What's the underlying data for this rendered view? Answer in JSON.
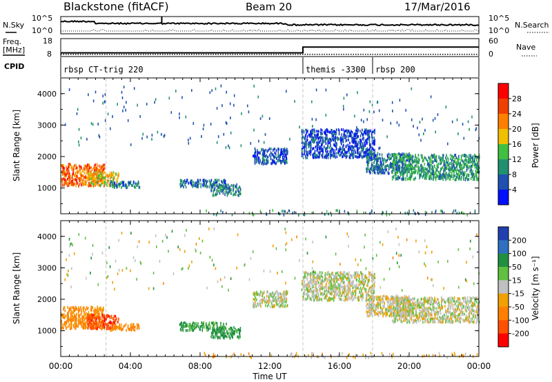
{
  "header": {
    "station": "Blackstone (fitACF)",
    "beam": "Beam 20",
    "date": "17/Mar/2016"
  },
  "noise_panel": {
    "left_label": "N.Sky",
    "left_ticks": [
      "10^5",
      "10^0"
    ],
    "right_label": "N.Search",
    "right_ticks": [
      "10^5",
      "10^0"
    ]
  },
  "freq_panel": {
    "left_label_1": "Freq.",
    "left_label_2": "[MHz]",
    "left_ticks": [
      "18",
      "8"
    ],
    "right_label": "Nave",
    "right_ticks": [
      "60",
      "0"
    ],
    "freq_series": [
      {
        "time": 0.0,
        "value": 10.7
      },
      {
        "time": 13.9,
        "value": 10.7
      },
      {
        "time": 13.9,
        "value": 14.9
      },
      {
        "time": 24.0,
        "value": 14.9
      }
    ],
    "nave_series_level": 8
  },
  "cpid": {
    "label": "CPID",
    "segments": [
      {
        "start": 0.0,
        "end": 13.9,
        "name": "rbsp CT-trig 220"
      },
      {
        "start": 13.9,
        "end": 17.9,
        "name": "themis -3300"
      },
      {
        "start": 17.9,
        "end": 24.0,
        "name": "rbsp 200"
      }
    ]
  },
  "power_panel": {
    "ylabel": "Slant Range [km]",
    "cbar_label": "Power [dB]",
    "cbar_ticks": [
      "28",
      "24",
      "20",
      "16",
      "12",
      "8",
      "4"
    ],
    "cbar_colors": [
      "#ff0000",
      "#f04000",
      "#ff8000",
      "#f0c000",
      "#40c040",
      "#209070",
      "#2050b0",
      "#0010ff"
    ]
  },
  "velocity_panel": {
    "ylabel": "Slant Range [km]",
    "cbar_label": "Velocity [m s⁻¹]",
    "cbar_ticks": [
      "200",
      "100",
      "50",
      "15",
      "-15",
      "-50",
      "-100",
      "-200"
    ],
    "cbar_colors": [
      "#2040b0",
      "#3070c0",
      "#209040",
      "#60c040",
      "#c0c0c0",
      "#f0a000",
      "#ff8000",
      "#ff5000",
      "#ff0000"
    ]
  },
  "chart_data": {
    "type": "heatmap",
    "xlabel": "Time UT",
    "x_ticks": [
      "00:00",
      "04:00",
      "08:00",
      "12:00",
      "16:00",
      "20:00",
      "00:00"
    ],
    "xlim_hours": [
      0,
      24
    ],
    "y_ticks": [
      "1000",
      "2000",
      "3000",
      "4000"
    ],
    "ylim_km": [
      180,
      4500
    ],
    "echo_regions": [
      {
        "t0": 0.0,
        "t1": 2.5,
        "r0": 1100,
        "r1": 1800,
        "power": 24,
        "velocity": -60
      },
      {
        "t0": 1.5,
        "t1": 3.3,
        "r0": 1100,
        "r1": 1550,
        "power": 18,
        "velocity": -180
      },
      {
        "t0": 2.8,
        "t1": 4.5,
        "r0": 1050,
        "r1": 1250,
        "power": 8,
        "velocity": -70
      },
      {
        "t0": 6.8,
        "t1": 9.5,
        "r0": 1050,
        "r1": 1300,
        "power": 7,
        "velocity": 60
      },
      {
        "t0": 8.6,
        "t1": 10.3,
        "r0": 800,
        "r1": 1150,
        "power": 9,
        "velocity": 70
      },
      {
        "t0": 11.0,
        "t1": 13.0,
        "r0": 1800,
        "r1": 2300,
        "power": 6,
        "velocity": 5
      },
      {
        "t0": 13.8,
        "t1": 18.0,
        "r0": 2000,
        "r1": 2900,
        "power": 5,
        "velocity": 5
      },
      {
        "t0": 17.5,
        "t1": 20.0,
        "r0": 1500,
        "r1": 2150,
        "power": 8,
        "velocity": -5
      },
      {
        "t0": 19.0,
        "t1": 24.0,
        "r0": 1300,
        "r1": 2100,
        "power": 11,
        "velocity": 0
      },
      {
        "t0": 8.0,
        "t1": 24.0,
        "r0": 180,
        "r1": 330,
        "power": 10,
        "velocity": -25
      }
    ],
    "scan_gaps_hours": [
      2.6,
      13.9,
      17.9
    ]
  }
}
